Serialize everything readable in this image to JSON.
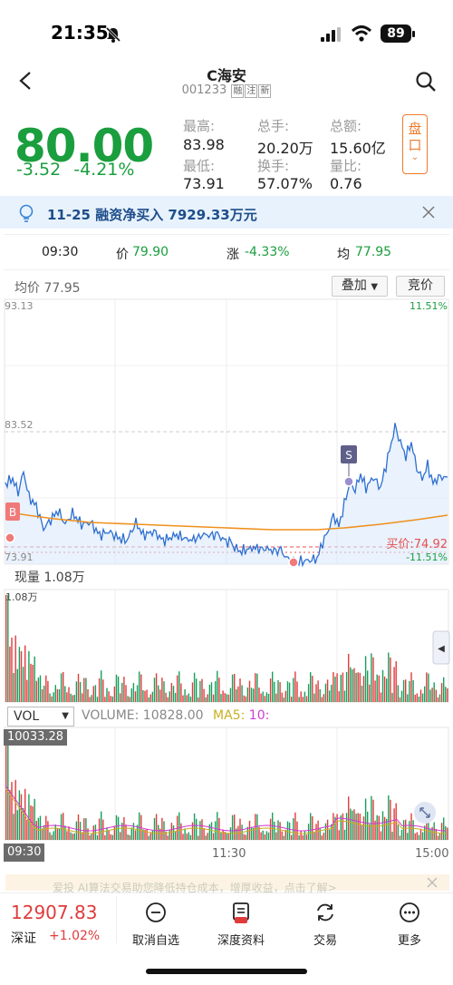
{
  "status_bar": {
    "time": "21:35",
    "battery": "89"
  },
  "header": {
    "title": "C海安",
    "code": "001233",
    "tags": [
      "融",
      "注",
      "新"
    ]
  },
  "quote": {
    "price": "80.00",
    "change": "-3.52",
    "change_pct": "-4.21%",
    "stats": [
      {
        "label": "最高:",
        "value": "83.98"
      },
      {
        "label": "总手:",
        "value": "20.20万"
      },
      {
        "label": "总额:",
        "value": "15.60亿"
      },
      {
        "label": "最低:",
        "value": "73.91"
      },
      {
        "label": "换手:",
        "value": "57.07%"
      },
      {
        "label": "量比:",
        "value": "0.76"
      }
    ],
    "panko_label": "盘口"
  },
  "notice": {
    "text": "11-25 融资净买入 7929.33万元"
  },
  "info_bar": {
    "time": "09:30",
    "price_lbl": "价",
    "price": "79.90",
    "chg_lbl": "涨",
    "chg": "-4.33%",
    "avg_lbl": "均",
    "avg": "77.95"
  },
  "chart": {
    "avg_label": "均价 77.95",
    "overlay_btn": "叠加",
    "bid_btn": "竞价",
    "y_top": "93.13",
    "y_mid": "83.52",
    "y_bot": "73.91",
    "pct_top": "11.51%",
    "pct_bot": "-11.51%",
    "buy_price": "买价:74.92",
    "marker_b": "B",
    "marker_s": "S",
    "volume_label": "现量 1.08万",
    "vol_axis_max": "1.08万",
    "colors": {
      "price_line": "#2f6fd0",
      "avg_line": "#f0901c",
      "up": "#e23b3b",
      "down": "#1a9e5b",
      "buy_line": "#e85050"
    }
  },
  "chart_data": {
    "type": "line",
    "x_labels": [
      "09:30",
      "11:30",
      "15:00"
    ],
    "ylim": [
      73.91,
      93.13
    ],
    "series": [],
    "buy_price": 74.92
  },
  "vol_panel": {
    "selector": "VOL",
    "volume_text": "VOLUME: 10828.00",
    "ma5_text": "MA5:",
    "ma5_val": "10:",
    "max_label": "10033.28",
    "time_start": "09:30",
    "time_mid": "11:30",
    "time_end": "15:00"
  },
  "banner": {
    "text": "爱投 AI算法交易助您降低持仓成本，增厚收益，点击了解>"
  },
  "bottom_bar": {
    "index_value": "12907.83",
    "index_name": "深证",
    "index_change": "+1.02%",
    "items": [
      {
        "label": "取消自选",
        "icon": "minus-circle-icon"
      },
      {
        "label": "深度资料",
        "icon": "document-icon"
      },
      {
        "label": "交易",
        "icon": "exchange-icon"
      },
      {
        "label": "更多",
        "icon": "more-icon"
      }
    ]
  }
}
